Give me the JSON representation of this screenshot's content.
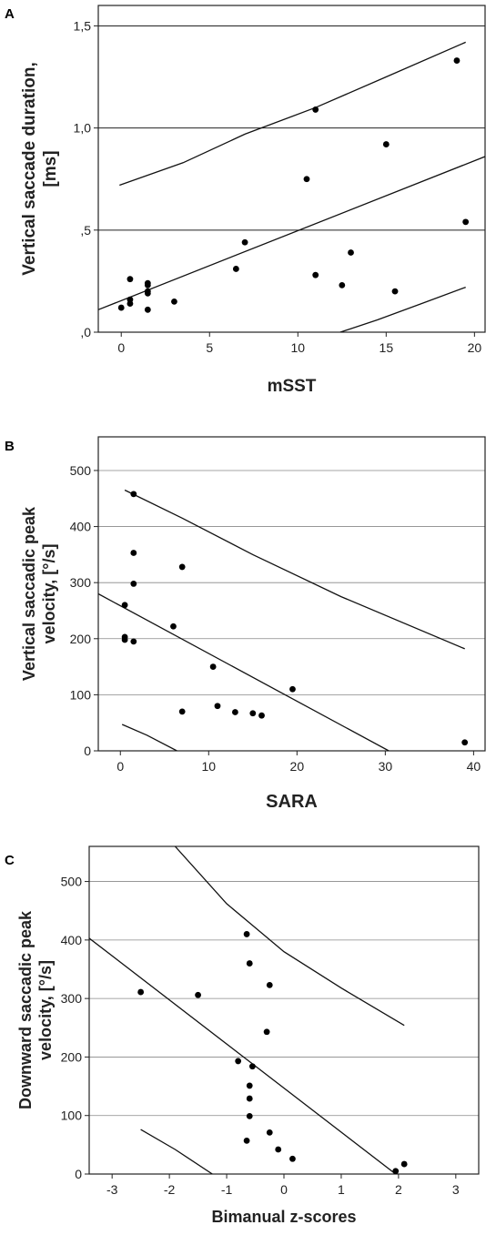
{
  "chart_data": [
    {
      "type": "scatter",
      "panel_label": "A",
      "xlabel": "mSST",
      "ylabel_lines": [
        "Vertical saccade duration,",
        "[ms]"
      ],
      "xlim": [
        -1.3,
        20.6
      ],
      "ylim": [
        0,
        1.6
      ],
      "xticks": [
        0,
        5,
        10,
        15,
        20
      ],
      "xtick_labels": [
        "0",
        "5",
        "10",
        "15",
        "20"
      ],
      "yticks": [
        0,
        0.5,
        1.0,
        1.5
      ],
      "ytick_labels": [
        ",0",
        ",5",
        "1,0",
        "1,5"
      ],
      "grid": "horizontal",
      "points": [
        {
          "x": 0.0,
          "y": 0.12
        },
        {
          "x": 0.5,
          "y": 0.14
        },
        {
          "x": 0.5,
          "y": 0.16
        },
        {
          "x": 0.5,
          "y": 0.26
        },
        {
          "x": 1.5,
          "y": 0.11
        },
        {
          "x": 1.5,
          "y": 0.19
        },
        {
          "x": 1.5,
          "y": 0.2
        },
        {
          "x": 1.5,
          "y": 0.23
        },
        {
          "x": 1.5,
          "y": 0.24
        },
        {
          "x": 3.0,
          "y": 0.15
        },
        {
          "x": 6.5,
          "y": 0.31
        },
        {
          "x": 7.0,
          "y": 0.44
        },
        {
          "x": 10.5,
          "y": 0.75
        },
        {
          "x": 11.0,
          "y": 1.09
        },
        {
          "x": 11.0,
          "y": 0.28
        },
        {
          "x": 12.5,
          "y": 0.23
        },
        {
          "x": 13.0,
          "y": 0.39
        },
        {
          "x": 15.0,
          "y": 0.92
        },
        {
          "x": 15.5,
          "y": 0.2
        },
        {
          "x": 19.0,
          "y": 1.33
        },
        {
          "x": 19.5,
          "y": 0.54
        }
      ],
      "lines": [
        {
          "role": "fit",
          "points": [
            [
              -1.3,
              0.11
            ],
            [
              20.6,
              0.86
            ]
          ]
        },
        {
          "role": "upper-band",
          "points": [
            [
              -0.1,
              0.72
            ],
            [
              3.5,
              0.83
            ],
            [
              7.0,
              0.97
            ],
            [
              11.0,
              1.1
            ],
            [
              15.0,
              1.25
            ],
            [
              19.5,
              1.42
            ]
          ]
        },
        {
          "role": "lower-band",
          "points": [
            [
              12.4,
              0.0
            ],
            [
              14.5,
              0.06
            ],
            [
              17.0,
              0.14
            ],
            [
              19.5,
              0.22
            ]
          ]
        }
      ]
    },
    {
      "type": "scatter",
      "panel_label": "B",
      "xlabel": "SARA",
      "ylabel_lines": [
        "Vertical saccadic peak",
        "velocity, [°/s]"
      ],
      "xlim": [
        -2.5,
        41.3
      ],
      "ylim": [
        0,
        560
      ],
      "xticks": [
        0,
        10,
        20,
        30,
        40
      ],
      "xtick_labels": [
        "0",
        "10",
        "20",
        "30",
        "40"
      ],
      "yticks": [
        0,
        100,
        200,
        300,
        400,
        500
      ],
      "ytick_labels": [
        "0",
        "100",
        "200",
        "300",
        "400",
        "500"
      ],
      "grid": "horizontal",
      "points": [
        {
          "x": 1.5,
          "y": 458
        },
        {
          "x": 1.5,
          "y": 353
        },
        {
          "x": 1.5,
          "y": 298
        },
        {
          "x": 0.5,
          "y": 260
        },
        {
          "x": 0.5,
          "y": 203
        },
        {
          "x": 0.5,
          "y": 198
        },
        {
          "x": 1.5,
          "y": 195
        },
        {
          "x": 7.0,
          "y": 328
        },
        {
          "x": 6.0,
          "y": 222
        },
        {
          "x": 7.0,
          "y": 70
        },
        {
          "x": 10.5,
          "y": 150
        },
        {
          "x": 11.0,
          "y": 80
        },
        {
          "x": 13.0,
          "y": 69
        },
        {
          "x": 15.0,
          "y": 67
        },
        {
          "x": 16.0,
          "y": 63
        },
        {
          "x": 19.5,
          "y": 110
        },
        {
          "x": 39.0,
          "y": 15
        }
      ],
      "lines": [
        {
          "role": "fit",
          "points": [
            [
              -2.5,
              280
            ],
            [
              30.4,
              0
            ]
          ]
        },
        {
          "role": "upper-band",
          "points": [
            [
              0.5,
              465
            ],
            [
              7.0,
              415
            ],
            [
              15.0,
              350
            ],
            [
              25.0,
              275
            ],
            [
              39.0,
              182
            ]
          ]
        },
        {
          "role": "lower-band",
          "points": [
            [
              0.2,
              47
            ],
            [
              3.0,
              28
            ],
            [
              6.4,
              0
            ]
          ]
        }
      ]
    },
    {
      "type": "scatter",
      "panel_label": "C",
      "xlabel": "Bimanual z-scores",
      "ylabel_lines": [
        "Downward saccadic peak",
        "velocity, [°/s]"
      ],
      "xlim": [
        -3.4,
        3.4
      ],
      "ylim": [
        0,
        560
      ],
      "xticks": [
        -3,
        -2,
        -1,
        0,
        1,
        2,
        3
      ],
      "xtick_labels": [
        "-3",
        "-2",
        "-1",
        "0",
        "1",
        "2",
        "3"
      ],
      "yticks": [
        0,
        100,
        200,
        300,
        400,
        500
      ],
      "ytick_labels": [
        "0",
        "100",
        "200",
        "300",
        "400",
        "500"
      ],
      "grid": "horizontal",
      "points": [
        {
          "x": -2.5,
          "y": 311
        },
        {
          "x": -1.5,
          "y": 306
        },
        {
          "x": -0.65,
          "y": 410
        },
        {
          "x": -0.6,
          "y": 360
        },
        {
          "x": -0.25,
          "y": 323
        },
        {
          "x": -0.3,
          "y": 243
        },
        {
          "x": -0.8,
          "y": 193
        },
        {
          "x": -0.55,
          "y": 184
        },
        {
          "x": -0.6,
          "y": 151
        },
        {
          "x": -0.6,
          "y": 129
        },
        {
          "x": -0.6,
          "y": 99
        },
        {
          "x": -0.65,
          "y": 57
        },
        {
          "x": -0.25,
          "y": 71
        },
        {
          "x": -0.1,
          "y": 42
        },
        {
          "x": 0.15,
          "y": 26
        },
        {
          "x": 1.95,
          "y": 5
        },
        {
          "x": 2.1,
          "y": 17
        }
      ],
      "lines": [
        {
          "role": "fit",
          "points": [
            [
              -3.4,
              403
            ],
            [
              1.95,
              0
            ]
          ]
        },
        {
          "role": "upper-band",
          "points": [
            [
              -1.9,
              560
            ],
            [
              -1.0,
              462
            ],
            [
              0.0,
              380
            ],
            [
              1.0,
              318
            ],
            [
              2.1,
              254
            ]
          ]
        },
        {
          "role": "lower-band",
          "points": [
            [
              -2.5,
              76
            ],
            [
              -1.9,
              42
            ],
            [
              -1.25,
              0
            ]
          ]
        }
      ]
    }
  ]
}
